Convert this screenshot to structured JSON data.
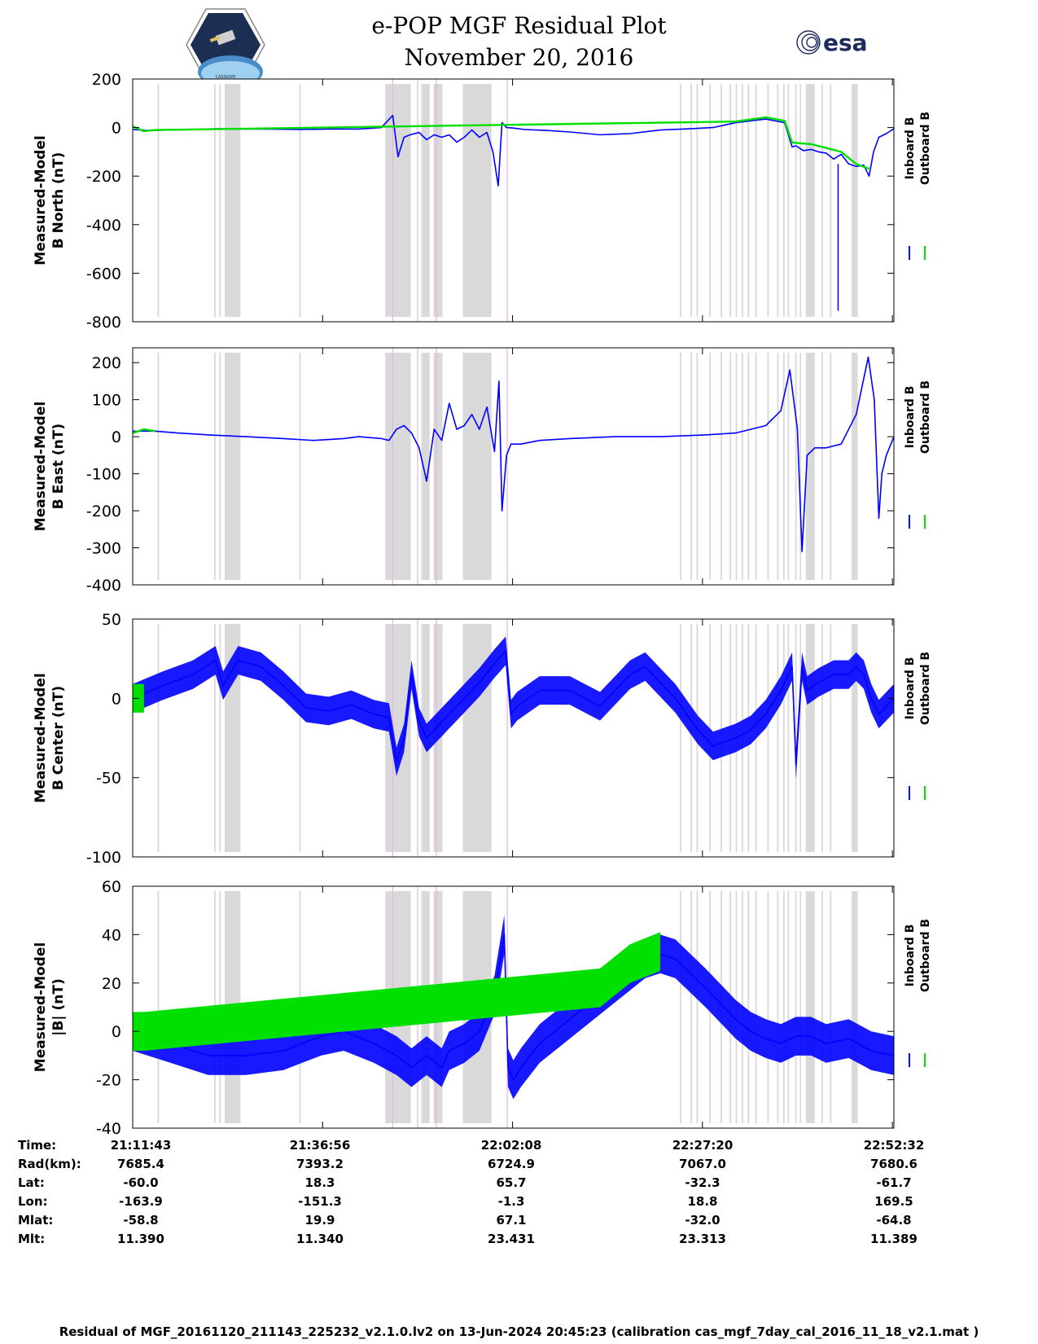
{
  "title_line1": "e-POP MGF Residual Plot",
  "title_line2": "November 20, 2016",
  "logos": {
    "left": "cassiope-mission-patch",
    "right": "esa-logo",
    "right_text": "esa",
    "left_text": "CASSIOPE"
  },
  "colors": {
    "inboard": "#0000ff",
    "outboard": "#00e000",
    "shade": "#d9d9d9",
    "marker": "#e6b3e6"
  },
  "legend": {
    "inboard": "Inboard B",
    "outboard": "Outboard B"
  },
  "footer": "Residual of MGF_20161120_211143_225232_v2.1.0.lv2 on 13-Jun-2024 20:45:23 (calibration cas_mgf_7day_cal_2016_11_18_v2.1.mat )",
  "ephemeris": {
    "row_labels": [
      "Time:",
      "Rad(km):",
      "Lat:",
      "Lon:",
      "Mlat:",
      "Mlt:"
    ],
    "columns": [
      [
        "21:11:43",
        "7685.4",
        "-60.0",
        "-163.9",
        "-58.8",
        "11.390"
      ],
      [
        "21:36:56",
        "7393.2",
        "18.3",
        "-151.3",
        "19.9",
        "11.340"
      ],
      [
        "22:02:08",
        "6724.9",
        "65.7",
        "-1.3",
        "67.1",
        "23.431"
      ],
      [
        "22:27:20",
        "7067.0",
        "-32.3",
        "18.8",
        "-32.0",
        "23.313"
      ],
      [
        "22:52:32",
        "7680.6",
        "-61.7",
        "169.5",
        "-64.8",
        "11.389"
      ]
    ]
  },
  "chart_data": [
    {
      "type": "line",
      "title": "",
      "ylabel_line1": "Measured-Model",
      "ylabel_line2": "B North (nT)",
      "ylim": [
        -800,
        200
      ],
      "yticks": [
        200,
        0,
        -200,
        -400,
        -600,
        -800
      ],
      "x_range_min": [
        0,
        101
      ],
      "xticks_min": [
        0,
        25.2,
        50.4,
        75.6,
        100.8
      ],
      "shaded_intervals_min": [
        [
          3.3,
          3.5
        ],
        [
          10.8,
          11
        ],
        [
          11.5,
          11.7
        ],
        [
          12.2,
          14.3
        ],
        [
          22.1,
          22.3
        ],
        [
          33.5,
          36.9
        ],
        [
          38.3,
          39.4
        ],
        [
          39.9,
          41.1
        ],
        [
          43.8,
          47.6
        ],
        [
          74,
          74.2
        ],
        [
          74.8,
          75
        ],
        [
          72.6,
          72.8
        ],
        [
          76.5,
          76.7
        ],
        [
          78,
          78.2
        ],
        [
          79.2,
          79.4
        ],
        [
          80,
          80.2
        ],
        [
          80.8,
          81
        ],
        [
          81.6,
          81.8
        ],
        [
          82.6,
          82.8
        ],
        [
          84.2,
          84.4
        ],
        [
          85.5,
          85.7
        ],
        [
          86.3,
          86.5
        ],
        [
          86.9,
          87.1
        ],
        [
          87.9,
          88.1
        ],
        [
          88.5,
          88.7
        ],
        [
          89.3,
          90.5
        ],
        [
          91.4,
          91.6
        ],
        [
          92.5,
          92.7
        ],
        [
          95.4,
          96.2
        ]
      ],
      "markers_min": [
        34.5,
        37.8,
        40.3,
        49.7
      ],
      "series": [
        {
          "name": "Inboard B",
          "x_min": [
            0,
            2,
            5,
            8,
            11,
            14,
            18,
            22,
            26,
            30,
            33,
            34.5,
            35.2,
            36,
            36.8,
            38,
            39,
            40,
            41,
            42,
            43,
            44,
            45,
            46,
            47,
            47.8,
            48.5,
            49,
            49.6,
            50.5,
            52,
            55,
            58,
            62,
            66,
            70,
            74,
            77,
            80,
            84,
            86.5,
            87.5,
            88,
            89,
            90,
            91,
            92,
            93,
            94,
            95,
            96,
            97,
            97.7,
            98.3,
            99,
            100,
            101
          ],
          "values": [
            -8,
            -12,
            -10,
            -8,
            -5,
            -6,
            -6,
            -8,
            -6,
            -6,
            0,
            50,
            -120,
            -40,
            -30,
            -20,
            -50,
            -30,
            -40,
            -30,
            -60,
            -40,
            -10,
            -40,
            -20,
            -100,
            -240,
            20,
            0,
            -2,
            -8,
            -12,
            -18,
            -30,
            -25,
            -10,
            -5,
            0,
            20,
            35,
            20,
            -80,
            -75,
            -95,
            -90,
            -100,
            -105,
            -130,
            -110,
            -150,
            -160,
            -155,
            -200,
            -100,
            -40,
            -25,
            -5
          ]
        },
        {
          "name": "Outboard B",
          "x_min": [
            0,
            1.5,
            3,
            80,
            84,
            86.5,
            87.5,
            90,
            94,
            96,
            97.7
          ],
          "values": [
            5,
            -15,
            -10,
            25,
            42,
            28,
            -62,
            -68,
            -100,
            -150,
            -170
          ]
        }
      ],
      "spikes": [
        {
          "x_min": 93.6,
          "value": -755
        }
      ]
    },
    {
      "type": "line",
      "title": "",
      "ylabel_line1": "Measured-Model",
      "ylabel_line2": "B East (nT)",
      "ylim": [
        -400,
        240
      ],
      "yticks": [
        200,
        100,
        0,
        -100,
        -200,
        -300,
        -400
      ],
      "x_range_min": [
        0,
        101
      ],
      "xticks_min": [
        0,
        25.2,
        50.4,
        75.6,
        100.8
      ],
      "shaded_intervals_min": [
        [
          3.3,
          3.5
        ],
        [
          10.8,
          11
        ],
        [
          11.5,
          11.7
        ],
        [
          12.2,
          14.3
        ],
        [
          22.1,
          22.3
        ],
        [
          33.5,
          36.9
        ],
        [
          38.3,
          39.4
        ],
        [
          39.9,
          41.1
        ],
        [
          43.8,
          47.6
        ],
        [
          74,
          74.2
        ],
        [
          74.8,
          75
        ],
        [
          72.6,
          72.8
        ],
        [
          76.5,
          76.7
        ],
        [
          78,
          78.2
        ],
        [
          79.2,
          79.4
        ],
        [
          80,
          80.2
        ],
        [
          80.8,
          81
        ],
        [
          81.6,
          81.8
        ],
        [
          82.6,
          82.8
        ],
        [
          84.2,
          84.4
        ],
        [
          85.5,
          85.7
        ],
        [
          86.3,
          86.5
        ],
        [
          86.9,
          87.1
        ],
        [
          87.9,
          88.1
        ],
        [
          88.5,
          88.7
        ],
        [
          89.3,
          90.5
        ],
        [
          91.4,
          91.6
        ],
        [
          92.5,
          92.7
        ],
        [
          95.4,
          96.2
        ]
      ],
      "markers_min": [
        34.5,
        37.8,
        40.3,
        49.7
      ],
      "series": [
        {
          "name": "Inboard B",
          "x_min": [
            0,
            3,
            6,
            10,
            15,
            20,
            24,
            28,
            30,
            33,
            34,
            35,
            36,
            37,
            38,
            39,
            40,
            41,
            42,
            43,
            44,
            45,
            46,
            47,
            48,
            48.6,
            49,
            49.6,
            50.2,
            51.5,
            54,
            58,
            64,
            70,
            76,
            80,
            84,
            86,
            87.2,
            88.2,
            88.8,
            89.5,
            90.5,
            92,
            94,
            96,
            97.6,
            98.4,
            99,
            99.4,
            100,
            101
          ],
          "values": [
            15,
            15,
            10,
            5,
            0,
            -5,
            -10,
            -5,
            0,
            -5,
            -10,
            20,
            30,
            10,
            -30,
            -120,
            20,
            -10,
            90,
            20,
            30,
            60,
            20,
            80,
            -40,
            150,
            -200,
            -50,
            -20,
            -20,
            -10,
            -5,
            0,
            0,
            5,
            10,
            30,
            70,
            180,
            20,
            -310,
            -50,
            -30,
            -30,
            -20,
            60,
            215,
            100,
            -220,
            -100,
            -50,
            0
          ]
        },
        {
          "name": "Outboard B",
          "x_min": [
            0,
            1.5,
            3
          ],
          "values": [
            10,
            20,
            15
          ]
        }
      ]
    },
    {
      "type": "line",
      "title": "",
      "ylabel_line1": "Measured-Model",
      "ylabel_line2": "B Center (nT)",
      "ylim": [
        -100,
        50
      ],
      "yticks": [
        50,
        0,
        -50,
        -100
      ],
      "x_range_min": [
        0,
        101
      ],
      "xticks_min": [
        0,
        25.2,
        50.4,
        75.6,
        100.8
      ],
      "shaded_intervals_min": [
        [
          3.3,
          3.5
        ],
        [
          10.8,
          11
        ],
        [
          11.5,
          11.7
        ],
        [
          12.2,
          14.3
        ],
        [
          22.1,
          22.3
        ],
        [
          33.5,
          36.9
        ],
        [
          38.3,
          39.4
        ],
        [
          39.9,
          41.1
        ],
        [
          43.8,
          47.6
        ],
        [
          74,
          74.2
        ],
        [
          74.8,
          75
        ],
        [
          72.6,
          72.8
        ],
        [
          76.5,
          76.7
        ],
        [
          78,
          78.2
        ],
        [
          79.2,
          79.4
        ],
        [
          80,
          80.2
        ],
        [
          80.8,
          81
        ],
        [
          81.6,
          81.8
        ],
        [
          82.6,
          82.8
        ],
        [
          84.2,
          84.4
        ],
        [
          85.5,
          85.7
        ],
        [
          86.3,
          86.5
        ],
        [
          86.9,
          87.1
        ],
        [
          87.9,
          88.1
        ],
        [
          88.5,
          88.7
        ],
        [
          89.3,
          90.5
        ],
        [
          91.4,
          91.6
        ],
        [
          92.5,
          92.7
        ],
        [
          95.4,
          96.2
        ]
      ],
      "markers_min": [
        34.5,
        37.8,
        40.3,
        49.7
      ],
      "series": [
        {
          "name": "Inboard B",
          "x_min": [
            0,
            4,
            8,
            11,
            12,
            14,
            17,
            20,
            23,
            26,
            29,
            32,
            34,
            35,
            36,
            37,
            38,
            39,
            40,
            41,
            42,
            44,
            46,
            48,
            49.5,
            50.2,
            51,
            54,
            58,
            62,
            64,
            66,
            68,
            72,
            75,
            77,
            80,
            82,
            84,
            86,
            87.5,
            88,
            88.8,
            89.5,
            91,
            93,
            95,
            96,
            97,
            98,
            99,
            101
          ],
          "values": [
            0,
            8,
            15,
            24,
            8,
            24,
            20,
            8,
            -6,
            -8,
            -4,
            -10,
            -12,
            -40,
            -25,
            15,
            -15,
            -25,
            -20,
            -15,
            -10,
            0,
            10,
            22,
            30,
            -10,
            -5,
            5,
            5,
            -5,
            5,
            15,
            20,
            0,
            -20,
            -30,
            -25,
            -20,
            -10,
            5,
            20,
            -42,
            20,
            5,
            10,
            15,
            15,
            20,
            15,
            0,
            -10,
            0
          ]
        },
        {
          "name": "Outboard B",
          "x_min": [
            0,
            1.5
          ],
          "values": [
            0,
            0
          ]
        }
      ],
      "band_halfwidth": 9
    },
    {
      "type": "line",
      "title": "",
      "ylabel_line1": "Measured-Model",
      "ylabel_line2": "|B| (nT)",
      "ylim": [
        -40,
        60
      ],
      "yticks": [
        60,
        40,
        20,
        0,
        -20,
        -40
      ],
      "x_range_min": [
        0,
        101
      ],
      "xticks_min": [
        0,
        25.2,
        50.4,
        75.6,
        100.8
      ],
      "shaded_intervals_min": [
        [
          3.3,
          3.5
        ],
        [
          10.8,
          11
        ],
        [
          11.5,
          11.7
        ],
        [
          12.2,
          14.3
        ],
        [
          22.1,
          22.3
        ],
        [
          33.5,
          36.9
        ],
        [
          38.3,
          39.4
        ],
        [
          39.9,
          41.1
        ],
        [
          43.8,
          47.6
        ],
        [
          74,
          74.2
        ],
        [
          74.8,
          75
        ],
        [
          72.6,
          72.8
        ],
        [
          76.5,
          76.7
        ],
        [
          78,
          78.2
        ],
        [
          79.2,
          79.4
        ],
        [
          80,
          80.2
        ],
        [
          80.8,
          81
        ],
        [
          81.6,
          81.8
        ],
        [
          82.6,
          82.8
        ],
        [
          84.2,
          84.4
        ],
        [
          85.5,
          85.7
        ],
        [
          86.3,
          86.5
        ],
        [
          86.9,
          87.1
        ],
        [
          87.9,
          88.1
        ],
        [
          88.5,
          88.7
        ],
        [
          89.3,
          90.5
        ],
        [
          91.4,
          91.6
        ],
        [
          92.5,
          92.7
        ],
        [
          95.4,
          96.2
        ]
      ],
      "markers_min": [
        34.5,
        37.8,
        40.3,
        49.7
      ],
      "series": [
        {
          "name": "Inboard B",
          "x_min": [
            0,
            5,
            10,
            15,
            20,
            25,
            28,
            32,
            35,
            37,
            39,
            41,
            42,
            44,
            46,
            48,
            49.3,
            49.8,
            50.5,
            51.5,
            54,
            58,
            62,
            66,
            68,
            70,
            72,
            76,
            80,
            82,
            84,
            86,
            88,
            90,
            92,
            95,
            98,
            101
          ],
          "values": [
            0,
            -5,
            -10,
            -10,
            -8,
            -2,
            0,
            -5,
            -10,
            -15,
            -10,
            -15,
            -8,
            -5,
            0,
            15,
            40,
            -15,
            -20,
            -15,
            -5,
            5,
            15,
            25,
            30,
            32,
            30,
            18,
            5,
            0,
            -3,
            -5,
            -2,
            -2,
            -5,
            -3,
            -8,
            -10
          ]
        },
        {
          "name": "Outboard B",
          "x_min": [
            0,
            1.5,
            62,
            66,
            70
          ],
          "values": [
            0,
            0,
            18,
            28,
            33
          ]
        }
      ],
      "band_halfwidth": 8
    }
  ]
}
